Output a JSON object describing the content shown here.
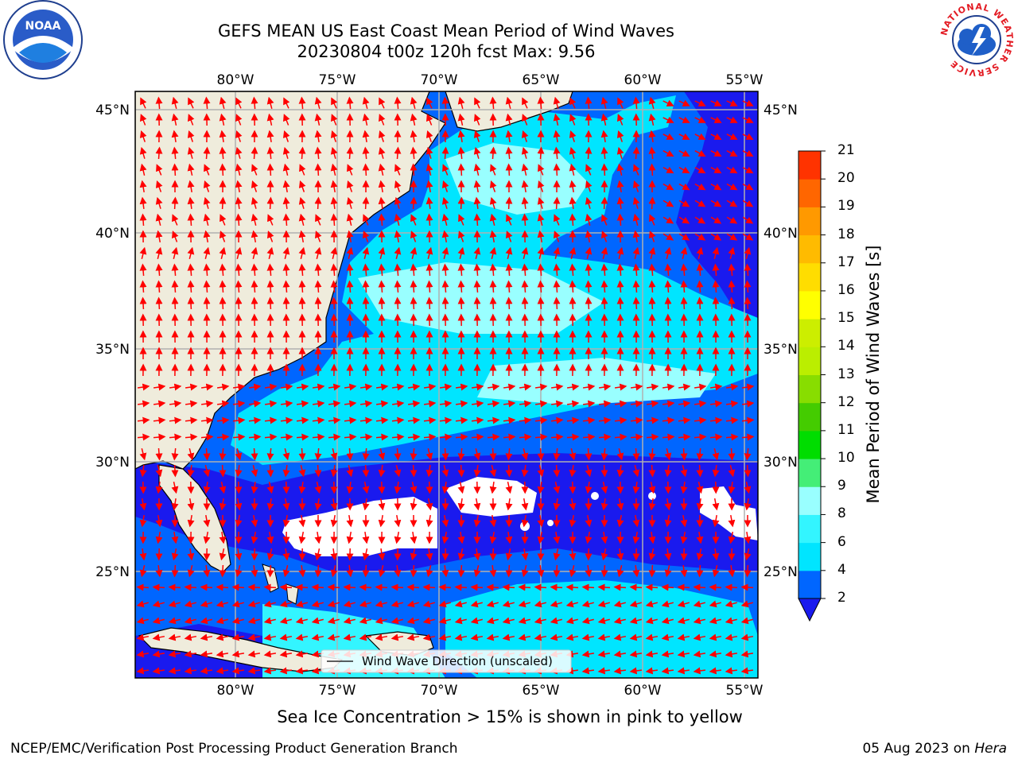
{
  "header": {
    "title_line1": "GEFS MEAN US East Coast Mean Period of Wind Waves",
    "title_line2": "20230804 t00z 120h fcst   Max: 9.56"
  },
  "logos": {
    "left": "NOAA",
    "right_ring_text": "NATIONAL WEATHER SERVICE"
  },
  "map": {
    "lon_labels": [
      "80°W",
      "75°W",
      "70°W",
      "65°W",
      "60°W",
      "55°W"
    ],
    "lat_labels": [
      "45°N",
      "40°N",
      "35°N",
      "30°N",
      "25°N"
    ],
    "legend_text": "Wind Wave Direction (unscaled)",
    "vector_color": "#ff0000",
    "land_color": "#efecdc"
  },
  "colorbar": {
    "label": "Mean Period of Wind Waves [s]",
    "ticks": [
      "2",
      "4",
      "6",
      "8",
      "9",
      "10",
      "11",
      "12",
      "13",
      "14",
      "15",
      "16",
      "17",
      "18",
      "19",
      "20",
      "21"
    ],
    "colors": [
      "#0066ff",
      "#00e5ff",
      "#33f5ff",
      "#99ffff",
      "#44ee77",
      "#00dd00",
      "#44cc00",
      "#88dd00",
      "#bbee00",
      "#ccee00",
      "#ffff00",
      "#ffdd00",
      "#ffbb00",
      "#ff9900",
      "#ff6600",
      "#ff3300",
      "#ff0000"
    ],
    "under_color": "#1a1aee"
  },
  "notes": {
    "sea_ice": "Sea Ice Concentration > 15% is shown in pink to yellow"
  },
  "footer": {
    "left": "NCEP/EMC/Verification Post Processing Product Generation Branch",
    "date": "05 Aug 2023 on",
    "machine": "Hera"
  }
}
